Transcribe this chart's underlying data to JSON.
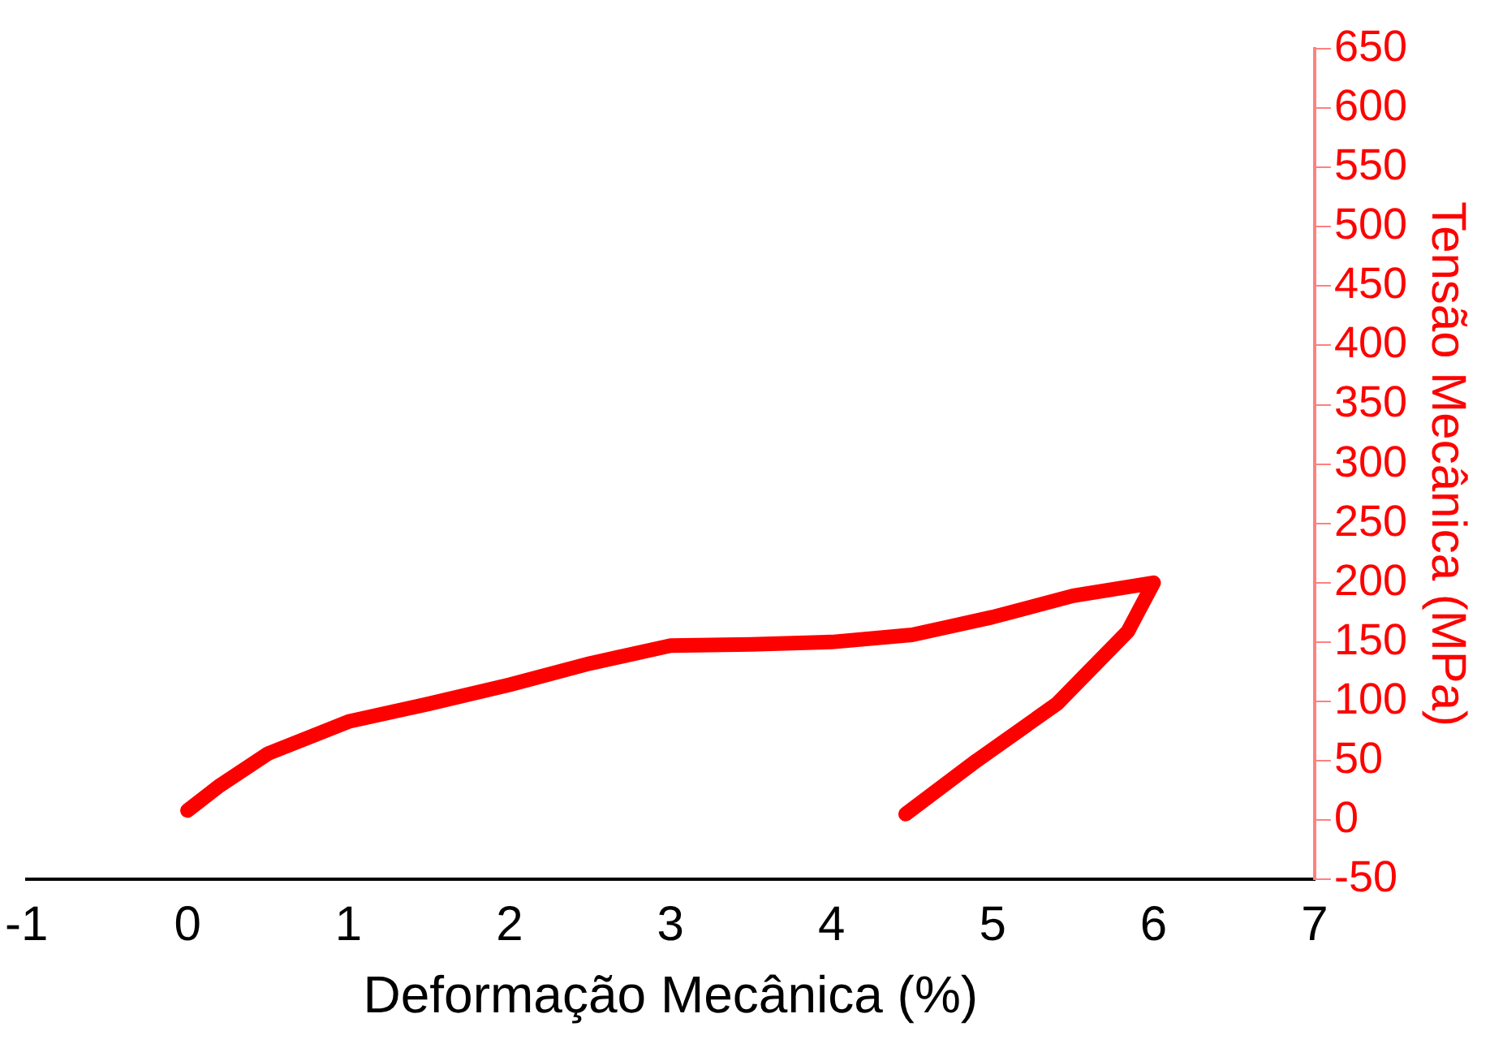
{
  "chart_data": {
    "type": "line",
    "xlabel": "Deformação Mecânica (%)",
    "ylabel": "Tensão Mecânica (MPa)",
    "xlim": [
      -1,
      7
    ],
    "xticks": [
      -1,
      0,
      1,
      2,
      3,
      4,
      5,
      6,
      7
    ],
    "ylim": [
      -50,
      650
    ],
    "yticks": [
      -50,
      0,
      50,
      100,
      150,
      200,
      250,
      300,
      350,
      400,
      450,
      500,
      550,
      600,
      650
    ],
    "grid": false,
    "legend": false,
    "marker": "none",
    "line_style": "solid",
    "series": [
      {
        "color": "#ff0000",
        "x": [
          0,
          0.2,
          0.5,
          1,
          1.5,
          2,
          2.5,
          3,
          3.5,
          4,
          4.5,
          5,
          5.5,
          6,
          5.84,
          5.4,
          4.9,
          4.46
        ],
        "values": [
          8,
          29,
          56,
          83,
          98,
          114,
          132,
          147,
          148,
          150,
          156,
          171,
          189,
          200,
          159,
          98,
          50,
          5
        ]
      }
    ]
  }
}
